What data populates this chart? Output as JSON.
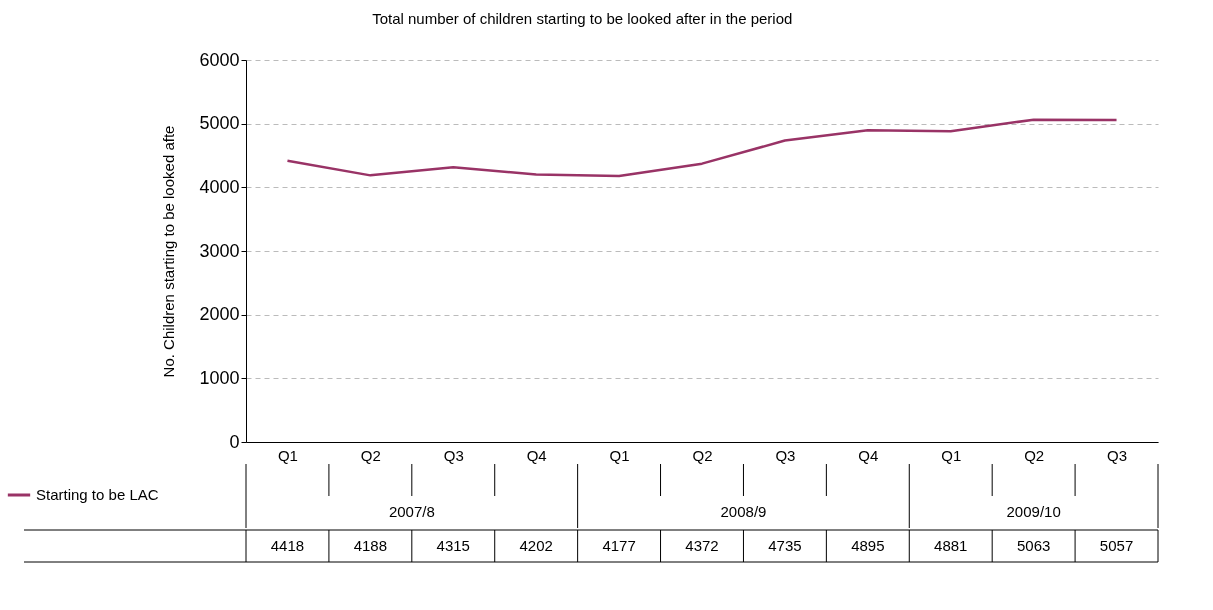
{
  "chart_data": {
    "type": "line",
    "title": "Total number of children starting to be looked after in the period",
    "ylabel": "No. Children starting to be looked afte",
    "categories": [
      "Q1",
      "Q2",
      "Q3",
      "Q4",
      "Q1",
      "Q2",
      "Q3",
      "Q4",
      "Q1",
      "Q2",
      "Q3"
    ],
    "series": [
      {
        "name": "Starting to be LAC",
        "color": "#993366",
        "values": [
          4418,
          4188,
          4315,
          4202,
          4177,
          4372,
          4735,
          4895,
          4881,
          5063,
          5057
        ],
        "value_labels": [
          "4418",
          "4188",
          "4315",
          "4202",
          "4177",
          "4372",
          "4735",
          "4895",
          "4881",
          "5063",
          "5057"
        ]
      }
    ],
    "ylim": [
      0,
      6000
    ],
    "yticks": [
      0,
      1000,
      2000,
      3000,
      4000,
      5000,
      6000
    ],
    "grid": "y",
    "legend": "bottom left",
    "marker": "none",
    "line_style": "solid",
    "annotations": [
      "2007/8",
      "2008/9",
      "2009/10"
    ]
  }
}
